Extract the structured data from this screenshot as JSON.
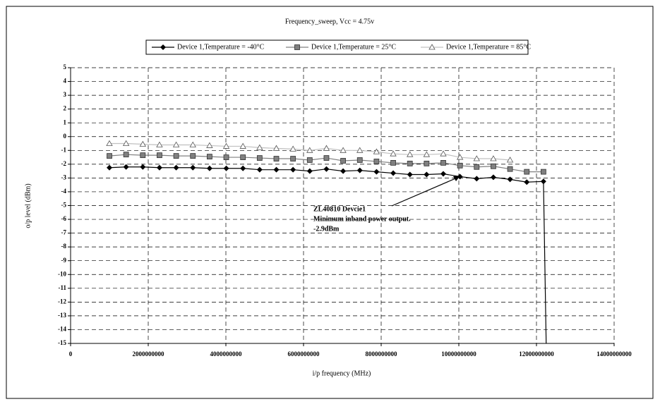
{
  "chart_data": {
    "type": "line",
    "title": "Frequency_sweep, Vcc = 4.75v",
    "x_label": "i/p frequency (MHz)",
    "y_label": "o/p level (dBm)",
    "x": [
      1000000000,
      1430000000,
      1860000000,
      2290000000,
      2720000000,
      3150000000,
      3580000000,
      4010000000,
      4440000000,
      4870000000,
      5300000000,
      5730000000,
      6160000000,
      6590000000,
      7020000000,
      7450000000,
      7880000000,
      8310000000,
      8740000000,
      9170000000,
      9600000000,
      10030000000,
      10460000000,
      10890000000,
      11320000000,
      11750000000,
      12180000000,
      12250000000
    ],
    "series": [
      {
        "name": "Device 1,Temperature = -40°C",
        "color": "#000000",
        "marker": "diamond",
        "values": [
          -2.25,
          -2.2,
          -2.2,
          -2.25,
          -2.25,
          -2.25,
          -2.3,
          -2.3,
          -2.3,
          -2.4,
          -2.4,
          -2.4,
          -2.5,
          -2.35,
          -2.5,
          -2.45,
          -2.55,
          -2.65,
          -2.75,
          -2.75,
          -2.7,
          -2.9,
          -3.05,
          -2.95,
          -3.1,
          -3.3,
          -3.25,
          -15
        ]
      },
      {
        "name": "Device 1,Temperature = 25°C",
        "color": "#808080",
        "marker": "square",
        "values": [
          -1.4,
          -1.3,
          -1.35,
          -1.35,
          -1.4,
          -1.4,
          -1.45,
          -1.5,
          -1.5,
          -1.55,
          -1.6,
          -1.6,
          -1.7,
          -1.55,
          -1.75,
          -1.7,
          -1.8,
          -1.9,
          -1.95,
          -1.95,
          -1.9,
          -2.1,
          -2.2,
          -2.15,
          -2.35,
          -2.55,
          -2.55,
          null
        ]
      },
      {
        "name": "Device 1,Temperature = 85°C",
        "color": "#c0c0c0",
        "marker": "triangle",
        "values": [
          -0.5,
          -0.5,
          -0.55,
          -0.6,
          -0.6,
          -0.6,
          -0.65,
          -0.7,
          -0.7,
          -0.8,
          -0.85,
          -0.9,
          -1.0,
          -0.85,
          -1.0,
          -1.0,
          -1.1,
          -1.25,
          -1.3,
          -1.3,
          -1.25,
          -1.5,
          -1.6,
          -1.6,
          -1.7,
          null,
          null,
          null
        ]
      }
    ],
    "xlim": [
      0,
      14000000000
    ],
    "xticks": [
      0,
      2000000000,
      4000000000,
      6000000000,
      8000000000,
      10000000000,
      12000000000,
      14000000000
    ],
    "ylim": [
      -15,
      5
    ],
    "yticks": [
      -15,
      -14,
      -13,
      -12,
      -11,
      -10,
      -9,
      -8,
      -7,
      -6,
      -5,
      -4,
      -3,
      -2,
      -1,
      0,
      1,
      2,
      3,
      4,
      5
    ],
    "grid": true,
    "legend": "top",
    "annotation": [
      "ZL40810 Devcie1",
      "Minimum inband power output.",
      "-2.9dBm"
    ]
  }
}
